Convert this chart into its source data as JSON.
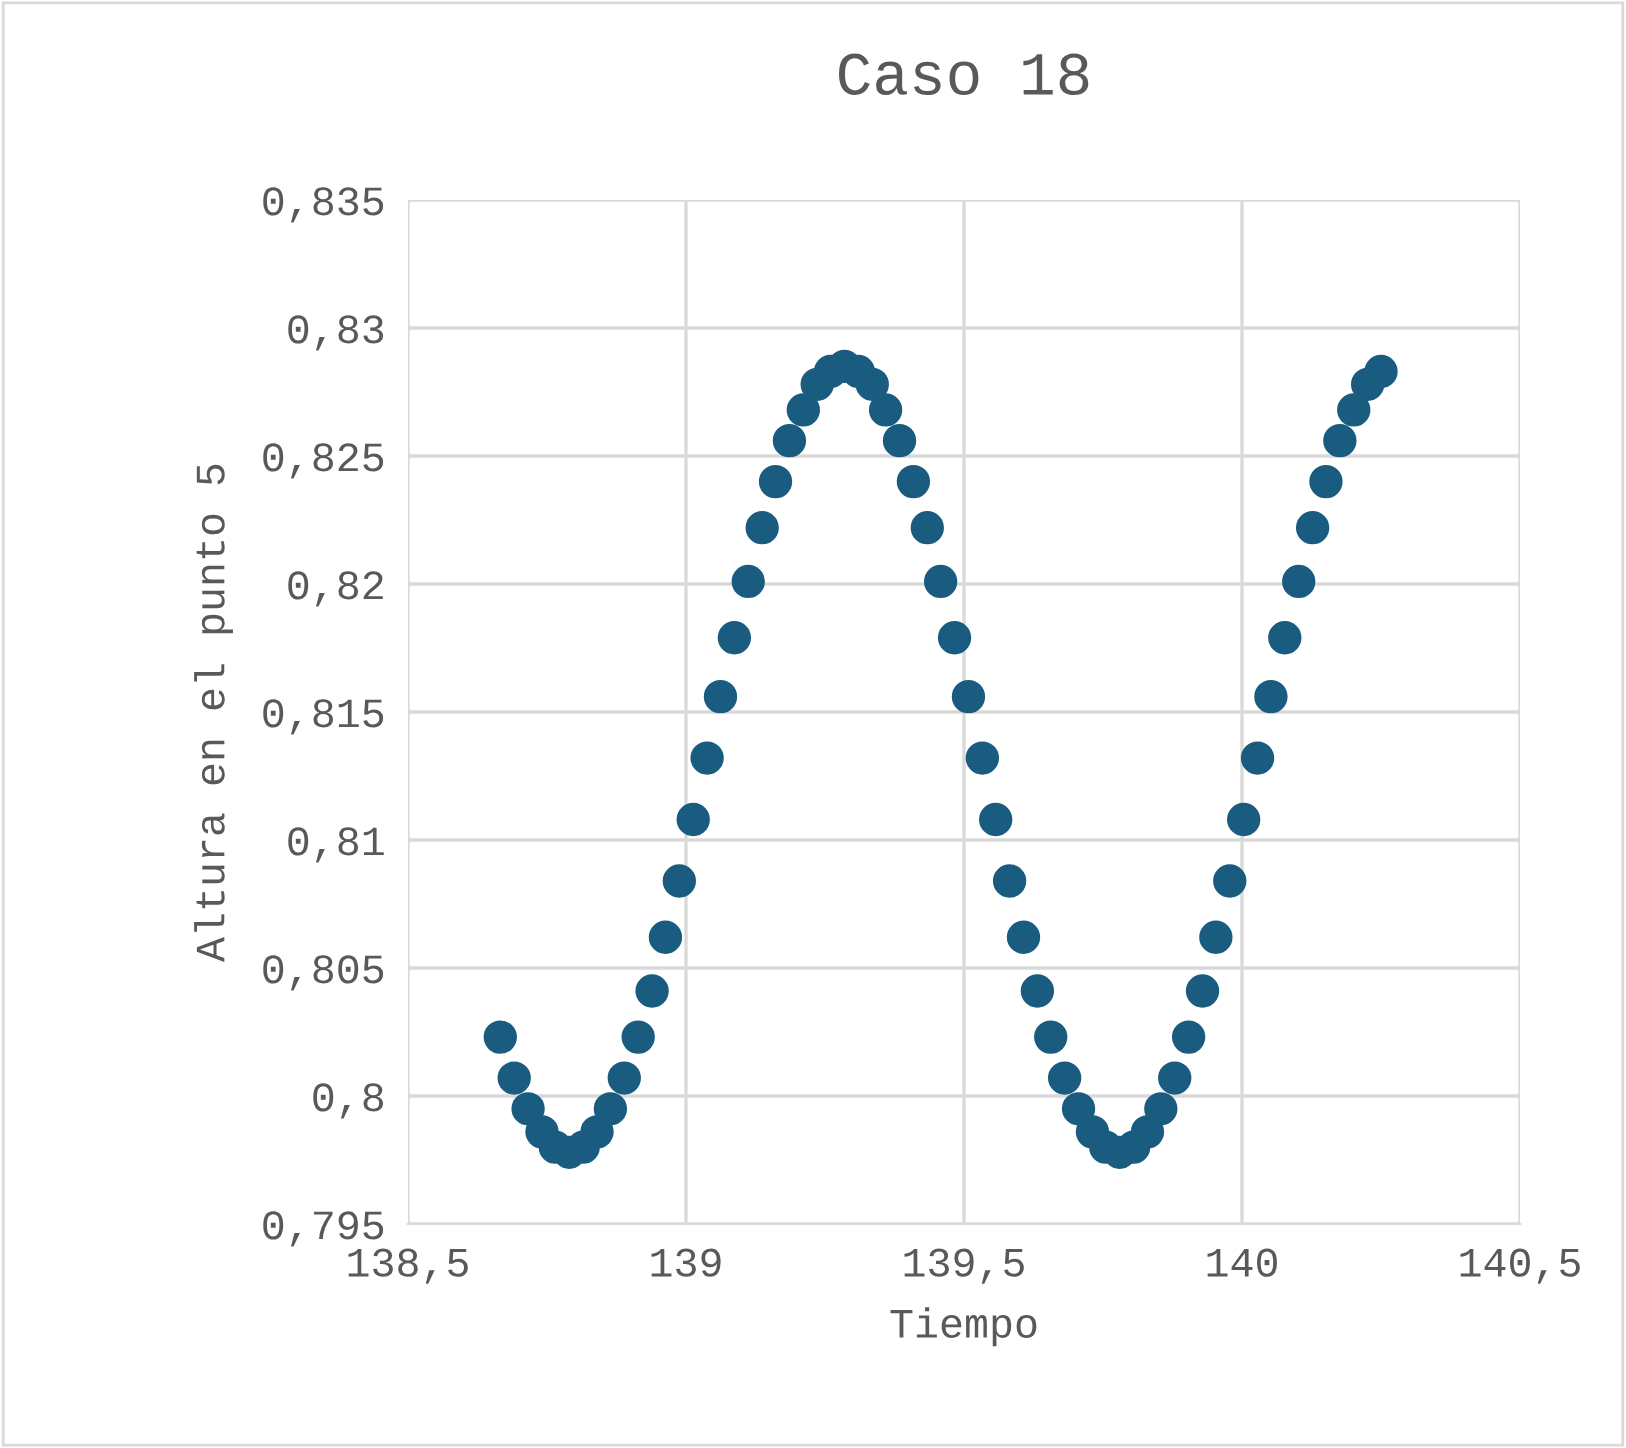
{
  "chart_data": {
    "type": "scatter",
    "title": "Caso 18",
    "xlabel": "Tiempo",
    "ylabel": "Altura en el punto 5",
    "x": [
      138.666,
      138.691,
      138.716,
      138.741,
      138.765,
      138.79,
      138.815,
      138.84,
      138.864,
      138.889,
      138.914,
      138.939,
      138.963,
      138.988,
      139.013,
      139.038,
      139.062,
      139.087,
      139.112,
      139.137,
      139.161,
      139.186,
      139.211,
      139.236,
      139.26,
      139.285,
      139.31,
      139.335,
      139.359,
      139.384,
      139.409,
      139.434,
      139.458,
      139.483,
      139.508,
      139.533,
      139.557,
      139.582,
      139.607,
      139.632,
      139.656,
      139.681,
      139.706,
      139.731,
      139.755,
      139.78,
      139.805,
      139.83,
      139.854,
      139.879,
      139.904,
      139.929,
      139.953,
      139.978,
      140.003,
      140.028,
      140.052,
      140.077,
      140.102,
      140.127,
      140.151,
      140.176,
      140.201,
      140.226,
      140.25
    ],
    "series": [
      {
        "color": "#1a5c80",
        "values": [
          0.8023,
          0.8007,
          0.7995,
          0.7986,
          0.798,
          0.7978,
          0.798,
          0.7986,
          0.7995,
          0.8007,
          0.8023,
          0.8041,
          0.8062,
          0.8084,
          0.8108,
          0.8132,
          0.8156,
          0.8179,
          0.8201,
          0.8222,
          0.824,
          0.8256,
          0.8268,
          0.8278,
          0.8283,
          0.8285,
          0.8283,
          0.8278,
          0.8268,
          0.8256,
          0.824,
          0.8222,
          0.8201,
          0.8179,
          0.8156,
          0.8132,
          0.8108,
          0.8084,
          0.8062,
          0.8041,
          0.8023,
          0.8007,
          0.7995,
          0.7986,
          0.798,
          0.7978,
          0.798,
          0.7986,
          0.7995,
          0.8007,
          0.8023,
          0.8041,
          0.8062,
          0.8084,
          0.8108,
          0.8132,
          0.8156,
          0.8179,
          0.8201,
          0.8222,
          0.824,
          0.8256,
          0.8268,
          0.8278,
          0.8283
        ]
      }
    ],
    "xlim": [
      138.5,
      140.5
    ],
    "xticks": [
      {
        "value": 138.5,
        "label": "138,5"
      },
      {
        "value": 139,
        "label": "139"
      },
      {
        "value": 139.5,
        "label": "139,5"
      },
      {
        "value": 140,
        "label": "140"
      },
      {
        "value": 140.5,
        "label": "140,5"
      }
    ],
    "ylim": [
      0.795,
      0.835
    ],
    "yticks": [
      {
        "value": 0.795,
        "label": "0,795"
      },
      {
        "value": 0.8,
        "label": "0,8"
      },
      {
        "value": 0.805,
        "label": "0,805"
      },
      {
        "value": 0.81,
        "label": "0,81"
      },
      {
        "value": 0.815,
        "label": "0,815"
      },
      {
        "value": 0.82,
        "label": "0,82"
      },
      {
        "value": 0.825,
        "label": "0,825"
      },
      {
        "value": 0.83,
        "label": "0,83"
      },
      {
        "value": 0.835,
        "label": "0,835"
      }
    ],
    "grid": true,
    "marker": "circle",
    "legend": false
  }
}
